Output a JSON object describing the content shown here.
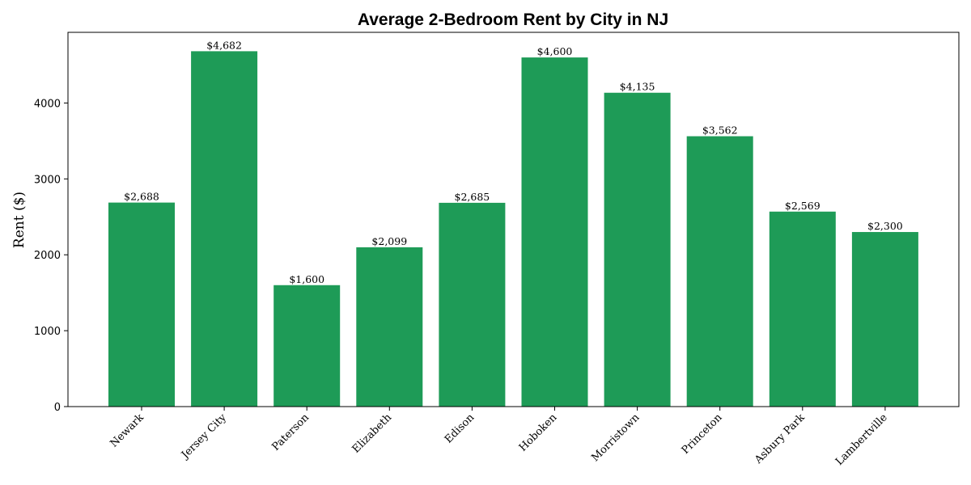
{
  "chart_data": {
    "type": "bar",
    "title": "Average 2-Bedroom Rent by City in NJ",
    "xlabel": "",
    "ylabel": "Rent ($)",
    "categories": [
      "Newark",
      "Jersey City",
      "Paterson",
      "Elizabeth",
      "Edison",
      "Hoboken",
      "Morristown",
      "Princeton",
      "Asbury Park",
      "Lambertville"
    ],
    "values": [
      2688,
      4682,
      1600,
      2099,
      2685,
      4600,
      4135,
      3562,
      2569,
      2300
    ],
    "data_labels": [
      "$2,688",
      "$4,682",
      "$1,600",
      "$2,099",
      "$2,685",
      "$4,600",
      "$4,135",
      "$3,562",
      "$2,569",
      "$2,300"
    ],
    "ylim": [
      0,
      4931
    ],
    "yticks": [
      0,
      1000,
      2000,
      3000,
      4000
    ],
    "bar_color": "#1e9b57",
    "grid": false,
    "legend": "none"
  }
}
